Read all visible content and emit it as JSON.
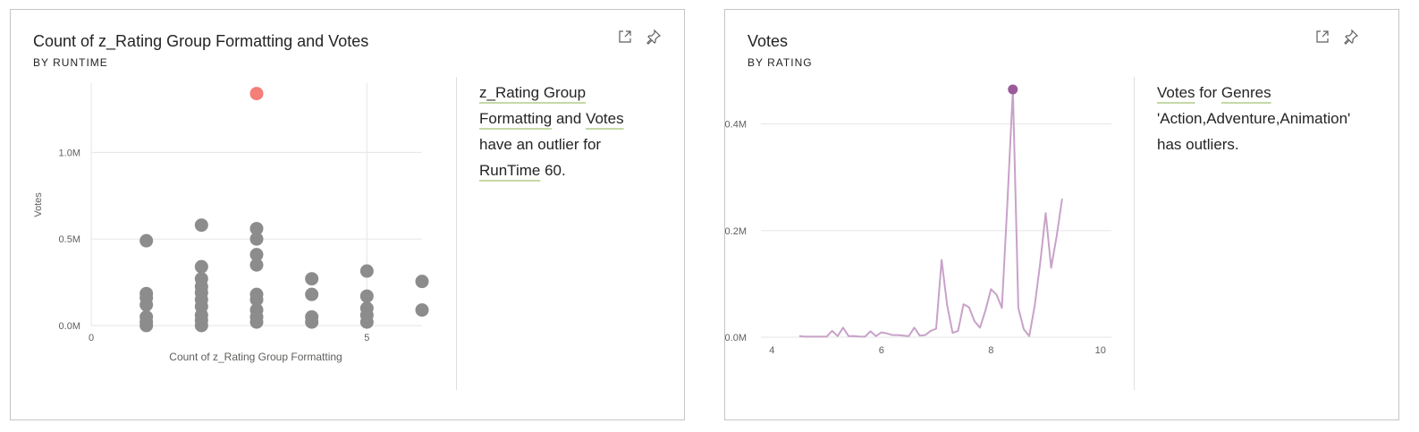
{
  "colors": {
    "scatter_point": "#8c8c8c",
    "scatter_outlier": "#f47e78",
    "line": "#c8a2c8",
    "line_outlier": "#9b5b9a",
    "gridline": "#e5e5e5",
    "axis_text": "#605e5c",
    "link_underline": "#c5d9a6"
  },
  "icons": {
    "focus": "focus-mode-icon",
    "pin": "pin-icon"
  },
  "card1": {
    "title": "Count of z_Rating Group Formatting and Votes",
    "subtitle": "BY RUNTIME",
    "narrative": {
      "p1": "z_Rating Group",
      "p2": "Formatting",
      "p3": " and ",
      "p4": "Votes",
      "p5": "have an outlier for",
      "p6": "RunTime",
      "p7": " 60."
    }
  },
  "card2": {
    "title": "Votes",
    "subtitle": "BY RATING",
    "narrative": {
      "p1": "Votes",
      "p2": " for ",
      "p3": "Genres",
      "p4": "'Action,Adventure,Animation'",
      "p5": "has outliers."
    }
  },
  "chart_data": [
    {
      "type": "scatter",
      "xlabel": "Count of z_Rating Group Formatting",
      "ylabel": "Votes",
      "xlim": [
        0,
        6
      ],
      "ylim": [
        0,
        1400000
      ],
      "x_ticks": [
        {
          "value": 0,
          "label": "0"
        },
        {
          "value": 5,
          "label": "5"
        }
      ],
      "y_ticks": [
        {
          "value": 0,
          "label": "0.0M"
        },
        {
          "value": 500000,
          "label": "0.5M"
        },
        {
          "value": 1000000,
          "label": "1.0M"
        }
      ],
      "grid": true,
      "points": [
        {
          "x": 1,
          "y": 0
        },
        {
          "x": 1,
          "y": 20000
        },
        {
          "x": 1,
          "y": 50000
        },
        {
          "x": 1,
          "y": 120000
        },
        {
          "x": 1,
          "y": 160000
        },
        {
          "x": 1,
          "y": 185000
        },
        {
          "x": 1,
          "y": 490000
        },
        {
          "x": 2,
          "y": 0
        },
        {
          "x": 2,
          "y": 30000
        },
        {
          "x": 2,
          "y": 60000
        },
        {
          "x": 2,
          "y": 110000
        },
        {
          "x": 2,
          "y": 150000
        },
        {
          "x": 2,
          "y": 190000
        },
        {
          "x": 2,
          "y": 225000
        },
        {
          "x": 2,
          "y": 270000
        },
        {
          "x": 2,
          "y": 340000
        },
        {
          "x": 2,
          "y": 580000
        },
        {
          "x": 3,
          "y": 20000
        },
        {
          "x": 3,
          "y": 50000
        },
        {
          "x": 3,
          "y": 90000
        },
        {
          "x": 3,
          "y": 150000
        },
        {
          "x": 3,
          "y": 180000
        },
        {
          "x": 3,
          "y": 350000
        },
        {
          "x": 3,
          "y": 410000
        },
        {
          "x": 3,
          "y": 500000
        },
        {
          "x": 3,
          "y": 560000
        },
        {
          "x": 4,
          "y": 20000
        },
        {
          "x": 4,
          "y": 50000
        },
        {
          "x": 4,
          "y": 180000
        },
        {
          "x": 4,
          "y": 270000
        },
        {
          "x": 5,
          "y": 20000
        },
        {
          "x": 5,
          "y": 60000
        },
        {
          "x": 5,
          "y": 100000
        },
        {
          "x": 5,
          "y": 170000
        },
        {
          "x": 5,
          "y": 315000
        },
        {
          "x": 6,
          "y": 90000
        },
        {
          "x": 6,
          "y": 255000
        }
      ],
      "outlier": {
        "x": 3,
        "y": 1340000,
        "runtime": 60
      }
    },
    {
      "type": "line",
      "xlabel": "",
      "ylabel": "",
      "xlim": [
        3.8,
        10.2
      ],
      "ylim": [
        0,
        0.48
      ],
      "x_ticks": [
        {
          "value": 4,
          "label": "4"
        },
        {
          "value": 6,
          "label": "6"
        },
        {
          "value": 8,
          "label": "8"
        },
        {
          "value": 10,
          "label": "10"
        }
      ],
      "y_ticks": [
        {
          "value": 0,
          "label": "0.0M"
        },
        {
          "value": 0.2,
          "label": "0.2M"
        },
        {
          "value": 0.4,
          "label": "0.4M"
        }
      ],
      "grid": true,
      "x": [
        4.5,
        4.6,
        4.7,
        4.8,
        4.9,
        5.0,
        5.1,
        5.2,
        5.3,
        5.4,
        5.5,
        5.6,
        5.7,
        5.8,
        5.9,
        6.0,
        6.1,
        6.2,
        6.3,
        6.4,
        6.5,
        6.6,
        6.7,
        6.8,
        6.9,
        7.0,
        7.1,
        7.2,
        7.3,
        7.4,
        7.5,
        7.6,
        7.7,
        7.8,
        7.9,
        8.0,
        8.1,
        8.2,
        8.3,
        8.4,
        8.5,
        8.6,
        8.7,
        8.8,
        8.9,
        9.0,
        9.1,
        9.2,
        9.3
      ],
      "values": [
        0.002,
        0.001,
        0.001,
        0.001,
        0.001,
        0.001,
        0.012,
        0.002,
        0.018,
        0.002,
        0.002,
        0.001,
        0.001,
        0.011,
        0.002,
        0.009,
        0.007,
        0.004,
        0.004,
        0.003,
        0.002,
        0.018,
        0.003,
        0.004,
        0.012,
        0.016,
        0.145,
        0.06,
        0.008,
        0.012,
        0.062,
        0.056,
        0.03,
        0.018,
        0.05,
        0.09,
        0.08,
        0.055,
        0.25,
        0.465,
        0.055,
        0.015,
        0.002,
        0.06,
        0.14,
        0.233,
        0.13,
        0.19,
        0.26
      ],
      "outlier": {
        "x": 8.4,
        "y": 0.465
      }
    }
  ]
}
